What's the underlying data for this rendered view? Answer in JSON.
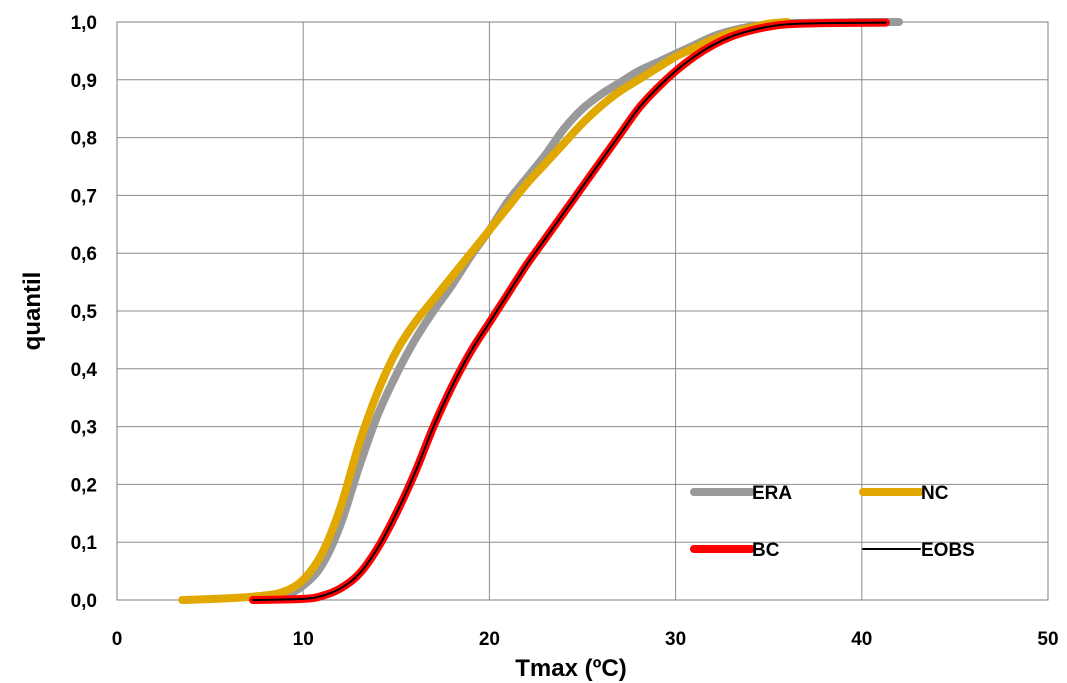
{
  "chart_data": {
    "type": "line",
    "title": "",
    "xlabel": "Tmax (ºC)",
    "ylabel": "quantil",
    "xlim": [
      0,
      50
    ],
    "ylim": [
      0,
      1.0
    ],
    "x_ticks": [
      "0",
      "10",
      "20",
      "30",
      "40",
      "50"
    ],
    "y_ticks": [
      "0,0",
      "0,1",
      "0,2",
      "0,3",
      "0,4",
      "0,5",
      "0,6",
      "0,7",
      "0,8",
      "0,9",
      "1,0"
    ],
    "grid": true,
    "legend_position": "bottom-right",
    "series": [
      {
        "name": "ERA",
        "color": "#999999",
        "points": [
          [
            7.5,
            0.0
          ],
          [
            9,
            0.008
          ],
          [
            10,
            0.025
          ],
          [
            11,
            0.06
          ],
          [
            12,
            0.13
          ],
          [
            13,
            0.23
          ],
          [
            14,
            0.32
          ],
          [
            15,
            0.39
          ],
          [
            16,
            0.45
          ],
          [
            17,
            0.5
          ],
          [
            18,
            0.545
          ],
          [
            19,
            0.595
          ],
          [
            20,
            0.64
          ],
          [
            21,
            0.69
          ],
          [
            22,
            0.73
          ],
          [
            23,
            0.77
          ],
          [
            24,
            0.815
          ],
          [
            25,
            0.85
          ],
          [
            26,
            0.875
          ],
          [
            27,
            0.895
          ],
          [
            28,
            0.915
          ],
          [
            29,
            0.93
          ],
          [
            30,
            0.945
          ],
          [
            31,
            0.96
          ],
          [
            32,
            0.975
          ],
          [
            33,
            0.985
          ],
          [
            34,
            0.992
          ],
          [
            35,
            0.996
          ],
          [
            36,
            0.998
          ],
          [
            38,
            0.999
          ],
          [
            40,
            1.0
          ],
          [
            42,
            1.0
          ]
        ]
      },
      {
        "name": "NC",
        "color": "#e0a800",
        "points": [
          [
            3.5,
            0.0
          ],
          [
            6,
            0.003
          ],
          [
            8,
            0.008
          ],
          [
            9,
            0.015
          ],
          [
            10,
            0.035
          ],
          [
            11,
            0.08
          ],
          [
            12,
            0.16
          ],
          [
            13,
            0.27
          ],
          [
            14,
            0.36
          ],
          [
            15,
            0.43
          ],
          [
            16,
            0.48
          ],
          [
            17,
            0.52
          ],
          [
            18,
            0.56
          ],
          [
            19,
            0.6
          ],
          [
            20,
            0.64
          ],
          [
            21,
            0.68
          ],
          [
            22,
            0.72
          ],
          [
            23,
            0.755
          ],
          [
            24,
            0.79
          ],
          [
            25,
            0.825
          ],
          [
            26,
            0.855
          ],
          [
            27,
            0.88
          ],
          [
            28,
            0.9
          ],
          [
            29,
            0.92
          ],
          [
            30,
            0.94
          ],
          [
            31,
            0.955
          ],
          [
            32,
            0.97
          ],
          [
            33,
            0.982
          ],
          [
            34,
            0.99
          ],
          [
            35,
            0.997
          ],
          [
            36,
            1.0
          ]
        ]
      },
      {
        "name": "BC",
        "color": "#ff0000",
        "points": [
          [
            7.3,
            0.0
          ],
          [
            10,
            0.002
          ],
          [
            11,
            0.007
          ],
          [
            12,
            0.02
          ],
          [
            13,
            0.045
          ],
          [
            14,
            0.09
          ],
          [
            15,
            0.15
          ],
          [
            16,
            0.22
          ],
          [
            17,
            0.3
          ],
          [
            18,
            0.37
          ],
          [
            19,
            0.43
          ],
          [
            20,
            0.48
          ],
          [
            21,
            0.53
          ],
          [
            22,
            0.58
          ],
          [
            23,
            0.625
          ],
          [
            24,
            0.67
          ],
          [
            25,
            0.715
          ],
          [
            26,
            0.76
          ],
          [
            27,
            0.805
          ],
          [
            28,
            0.85
          ],
          [
            29,
            0.885
          ],
          [
            30,
            0.915
          ],
          [
            31,
            0.94
          ],
          [
            32,
            0.96
          ],
          [
            33,
            0.975
          ],
          [
            34,
            0.985
          ],
          [
            35,
            0.992
          ],
          [
            36,
            0.996
          ],
          [
            38,
            0.998
          ],
          [
            41.3,
            0.999
          ]
        ]
      },
      {
        "name": "EOBS",
        "color": "#000000",
        "points": [
          [
            7.3,
            0.0
          ],
          [
            10,
            0.002
          ],
          [
            11,
            0.007
          ],
          [
            12,
            0.02
          ],
          [
            13,
            0.045
          ],
          [
            14,
            0.09
          ],
          [
            15,
            0.15
          ],
          [
            16,
            0.22
          ],
          [
            17,
            0.3
          ],
          [
            18,
            0.37
          ],
          [
            19,
            0.43
          ],
          [
            20,
            0.48
          ],
          [
            21,
            0.53
          ],
          [
            22,
            0.58
          ],
          [
            23,
            0.625
          ],
          [
            24,
            0.67
          ],
          [
            25,
            0.715
          ],
          [
            26,
            0.76
          ],
          [
            27,
            0.805
          ],
          [
            28,
            0.85
          ],
          [
            29,
            0.885
          ],
          [
            30,
            0.915
          ],
          [
            31,
            0.94
          ],
          [
            32,
            0.96
          ],
          [
            33,
            0.975
          ],
          [
            34,
            0.985
          ],
          [
            35,
            0.992
          ],
          [
            36,
            0.996
          ],
          [
            38,
            0.998
          ],
          [
            41.3,
            0.999
          ]
        ]
      }
    ]
  }
}
